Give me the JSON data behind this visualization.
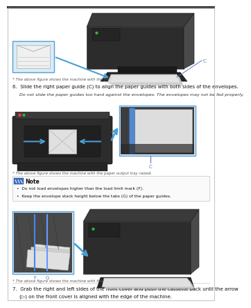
{
  "bg_color": "#ffffff",
  "page_bg": "#f5f5f5",
  "caption1": "* The above figure shows the machine with the paper output tray raised.",
  "step6_line1": "6.  Slide the right paper guide (C) to align the paper guides with both sides of the envelopes.",
  "step6_line2": "Do not slide the paper guides too hard against the envelopes. The envelopes may not be fed properly.",
  "caption2": "* The above figure shows the machine with the paper output tray raised.",
  "note_title": "Note",
  "note_bullet1": "•  Do not load envelopes higher than the load limit mark (F).",
  "note_bullet2": "•  Keep the envelope stack height below the tabs (G) of the paper guides.",
  "caption3": "* The above figure shows the machine with the paper output tray raised.",
  "step7_line1": "7.  Grab the right and left sides of the front cover and push the cassette back until the arrow",
  "step7_line2": "(▷) on the front cover is aligned with the edge of the machine.",
  "printer_dark": "#2c2c2c",
  "printer_mid": "#3a3a3a",
  "printer_light": "#4a4a4a",
  "printer_tray": "#1e1e1e",
  "blue_arrow": "#4a9fd4",
  "blue_box_fill": "#d8ecf7",
  "blue_box_border": "#5b9bd5",
  "label_blue": "#5577bb",
  "paper_white": "#e8e8e8",
  "paper_gray": "#d0d0d0",
  "note_icon_bg": "#3a6bbf",
  "text_dark": "#111111",
  "text_gray": "#444444",
  "text_italic": "#333333",
  "caption_color": "#555555",
  "border_gray": "#cccccc",
  "green_led": "#33bb33"
}
